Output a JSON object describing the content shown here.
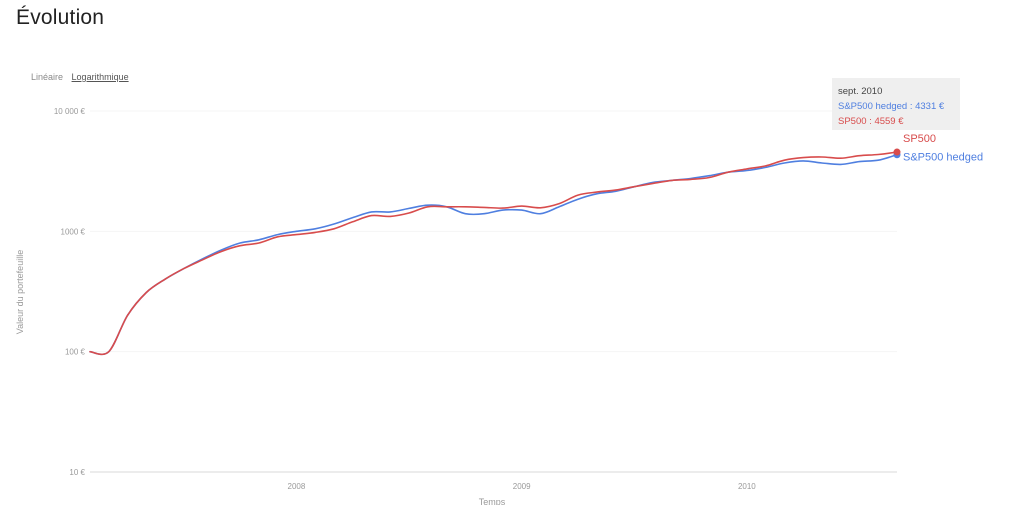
{
  "page": {
    "title": "Évolution"
  },
  "scale_toggle": {
    "linear_label": "Linéaire",
    "log_label": "Logarithmique",
    "selected": "log"
  },
  "tooltip": {
    "title": "sept. 2010",
    "rows": [
      {
        "text": "S&P500 hedged : 4331 €",
        "color": "#4f7fe0"
      },
      {
        "text": "SP500 : 4559 €",
        "color": "#d84c4c"
      }
    ]
  },
  "chart_data": {
    "type": "line",
    "title": "Évolution",
    "xlabel": "Temps",
    "ylabel": "Valeur du portefeuille",
    "yscale": "log",
    "ylim": [
      10,
      10000
    ],
    "xlim": [
      "2007-02",
      "2010-09"
    ],
    "y_ticks": [
      {
        "value": 10,
        "label": "10 €"
      },
      {
        "value": 100,
        "label": "100 €"
      },
      {
        "value": 1000,
        "label": "1000 €"
      },
      {
        "value": 10000,
        "label": "10 000 €"
      }
    ],
    "x_ticks": [
      {
        "value": "2008-01",
        "label": "2008"
      },
      {
        "value": "2009-01",
        "label": "2009"
      },
      {
        "value": "2010-01",
        "label": "2010"
      }
    ],
    "x": [
      "2007-02",
      "2007-03",
      "2007-04",
      "2007-05",
      "2007-06",
      "2007-07",
      "2007-08",
      "2007-09",
      "2007-10",
      "2007-11",
      "2007-12",
      "2008-01",
      "2008-02",
      "2008-03",
      "2008-04",
      "2008-05",
      "2008-06",
      "2008-07",
      "2008-08",
      "2008-09",
      "2008-10",
      "2008-11",
      "2008-12",
      "2009-01",
      "2009-02",
      "2009-03",
      "2009-04",
      "2009-05",
      "2009-06",
      "2009-07",
      "2009-08",
      "2009-09",
      "2009-10",
      "2009-11",
      "2009-12",
      "2010-01",
      "2010-02",
      "2010-03",
      "2010-04",
      "2010-05",
      "2010-06",
      "2010-07",
      "2010-08",
      "2010-09"
    ],
    "series": [
      {
        "name": "S&P500 hedged",
        "color": "#4f7fe0",
        "values": [
          100,
          100,
          200,
          310,
          400,
          490,
          590,
          700,
          800,
          850,
          940,
          1000,
          1050,
          1150,
          1300,
          1450,
          1450,
          1550,
          1650,
          1600,
          1400,
          1400,
          1500,
          1500,
          1400,
          1600,
          1850,
          2050,
          2150,
          2350,
          2550,
          2650,
          2750,
          2900,
          3100,
          3200,
          3400,
          3700,
          3850,
          3700,
          3600,
          3800,
          3900,
          4331
        ]
      },
      {
        "name": "SP500",
        "color": "#d84c4c",
        "values": [
          100,
          100,
          200,
          310,
          400,
          490,
          580,
          680,
          760,
          800,
          900,
          940,
          980,
          1050,
          1200,
          1350,
          1330,
          1420,
          1600,
          1600,
          1600,
          1580,
          1560,
          1620,
          1570,
          1700,
          2000,
          2120,
          2200,
          2350,
          2500,
          2650,
          2700,
          2800,
          3100,
          3300,
          3500,
          3900,
          4100,
          4150,
          4050,
          4250,
          4350,
          4559
        ]
      }
    ],
    "highlight": {
      "x": "2010-09"
    }
  }
}
